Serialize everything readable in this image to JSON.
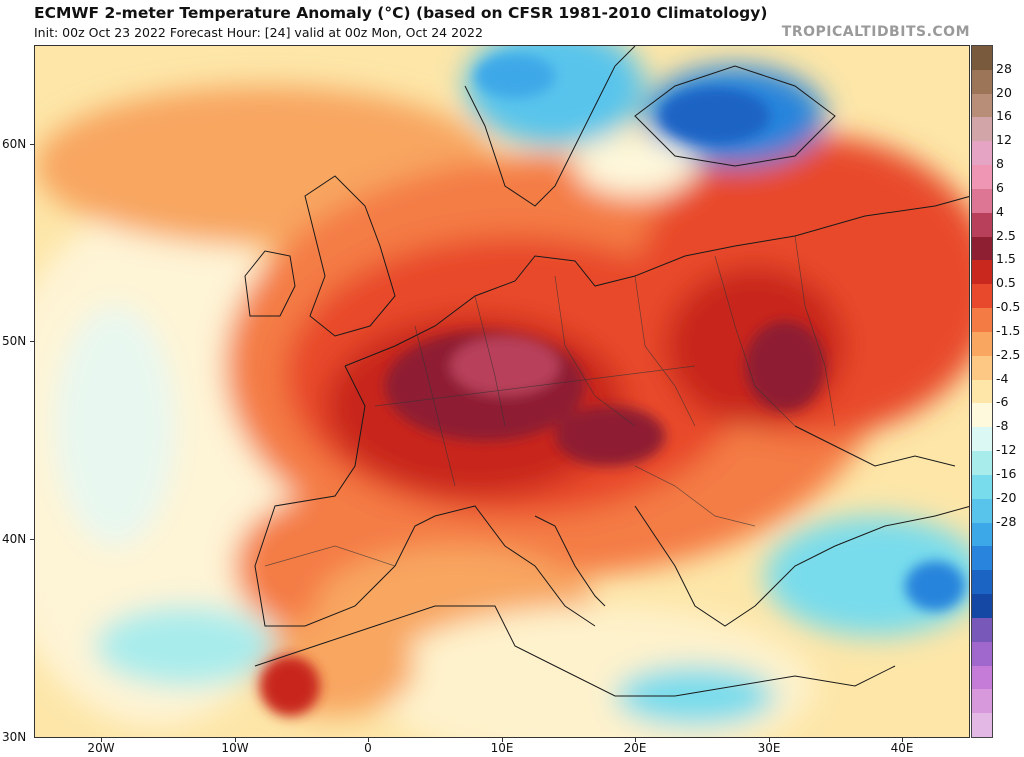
{
  "header": {
    "title": "ECMWF 2-meter Temperature Anomaly (°C) (based on CFSR 1981-2010 Climatology)",
    "subtitle": "Init: 00z Oct 23 2022   Forecast Hour: [24]   valid at 00z Mon, Oct 24 2022",
    "watermark": "TROPICALTIDBITS.COM"
  },
  "map": {
    "latitude_labels": [
      "60N",
      "50N",
      "40N",
      "30N"
    ],
    "longitude_labels": [
      "20W",
      "10W",
      "0",
      "10E",
      "20E",
      "30E",
      "40E"
    ]
  },
  "colorbar": {
    "labels": [
      "28",
      "20",
      "16",
      "12",
      "8",
      "6",
      "4",
      "2.5",
      "1.5",
      "0.5",
      "-0.5",
      "-1.5",
      "-2.5",
      "-4",
      "-6",
      "-8",
      "-12",
      "-16",
      "-20",
      "-28"
    ],
    "colors": [
      "#7a5a3c",
      "#9c7458",
      "#b88e78",
      "#d2a6a8",
      "#e6a4c4",
      "#ee96b4",
      "#dc7694",
      "#b8405a",
      "#8e1e32",
      "#c8281e",
      "#e8482c",
      "#f47c44",
      "#f8a660",
      "#fcc884",
      "#fde6a8",
      "#fef8dc",
      "#dcf8f4",
      "#a8ecec",
      "#78dcec",
      "#58c4ec",
      "#3ca8e8",
      "#2884dc",
      "#1c64c4",
      "#1448a4",
      "#7858b8",
      "#a068cc",
      "#c47cd8",
      "#d898dc",
      "#e4b8e4"
    ]
  }
}
